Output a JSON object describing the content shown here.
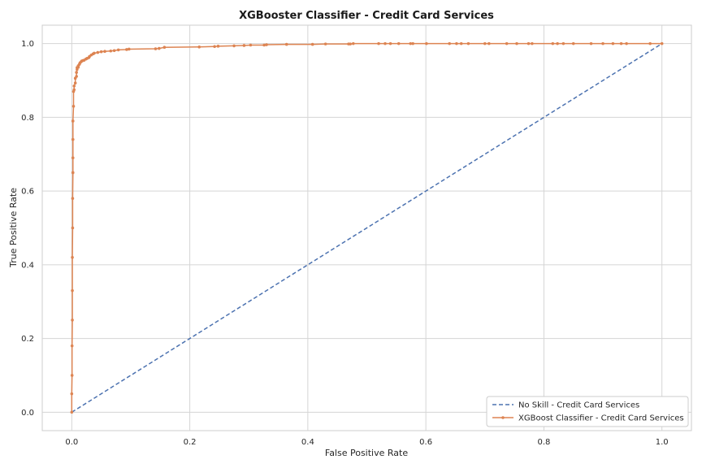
{
  "chart_data": {
    "type": "line",
    "title": "XGBooster Classifier - Credit Card Services",
    "xlabel": "False Positive Rate",
    "ylabel": "True Positive Rate",
    "xlim": [
      -0.05,
      1.05
    ],
    "ylim": [
      -0.05,
      1.05
    ],
    "xticks": [
      0.0,
      0.2,
      0.4,
      0.6,
      0.8,
      1.0
    ],
    "yticks": [
      0.0,
      0.2,
      0.4,
      0.6,
      0.8,
      1.0
    ],
    "xtick_labels": [
      "0.0",
      "0.2",
      "0.4",
      "0.6",
      "0.8",
      "1.0"
    ],
    "ytick_labels": [
      "0.0",
      "0.2",
      "0.4",
      "0.6",
      "0.8",
      "1.0"
    ],
    "grid": true,
    "legend_position": "lower-right",
    "series": [
      {
        "name": "No Skill - Credit Card Services",
        "style": "dashed",
        "color": "#4c72b0",
        "markers": false,
        "x": [
          0.0,
          1.0
        ],
        "y": [
          0.0,
          1.0
        ]
      },
      {
        "name": "XGBoost Classifier - Credit Card Services",
        "style": "solid",
        "color": "#dd8452",
        "markers": true,
        "x": [
          0.0,
          0.0,
          0.0005,
          0.0005,
          0.001,
          0.001,
          0.001,
          0.0015,
          0.0015,
          0.002,
          0.002,
          0.002,
          0.002,
          0.003,
          0.003,
          0.004,
          0.004,
          0.006,
          0.006,
          0.008,
          0.008,
          0.009,
          0.009,
          0.011,
          0.011,
          0.013,
          0.014,
          0.016,
          0.017,
          0.019,
          0.021,
          0.024,
          0.026,
          0.029,
          0.03,
          0.033,
          0.036,
          0.038,
          0.044,
          0.05,
          0.056,
          0.066,
          0.072,
          0.079,
          0.093,
          0.097,
          0.142,
          0.148,
          0.157,
          0.216,
          0.242,
          0.248,
          0.275,
          0.292,
          0.303,
          0.326,
          0.33,
          0.364,
          0.408,
          0.43,
          0.469,
          0.472,
          0.477,
          0.52,
          0.531,
          0.54,
          0.554,
          0.574,
          0.578,
          0.601,
          0.64,
          0.652,
          0.66,
          0.672,
          0.7,
          0.707,
          0.737,
          0.754,
          0.774,
          0.78,
          0.815,
          0.823,
          0.833,
          0.85,
          0.88,
          0.9,
          0.917,
          0.931,
          0.94,
          0.98,
          1.0
        ],
        "y": [
          0.0,
          0.05,
          0.1,
          0.18,
          0.25,
          0.33,
          0.42,
          0.5,
          0.58,
          0.65,
          0.69,
          0.74,
          0.79,
          0.83,
          0.87,
          0.875,
          0.885,
          0.893,
          0.906,
          0.911,
          0.922,
          0.93,
          0.935,
          0.936,
          0.94,
          0.944,
          0.948,
          0.951,
          0.953,
          0.954,
          0.955,
          0.958,
          0.96,
          0.962,
          0.965,
          0.969,
          0.972,
          0.974,
          0.976,
          0.978,
          0.979,
          0.98,
          0.981,
          0.983,
          0.984,
          0.985,
          0.986,
          0.987,
          0.99,
          0.991,
          0.992,
          0.993,
          0.994,
          0.995,
          0.996,
          0.996,
          0.997,
          0.998,
          0.998,
          0.999,
          0.999,
          0.999,
          1.0,
          1.0,
          1.0,
          1.0,
          1.0,
          1.0,
          1.0,
          1.0,
          1.0,
          1.0,
          1.0,
          1.0,
          1.0,
          1.0,
          1.0,
          1.0,
          1.0,
          1.0,
          1.0,
          1.0,
          1.0,
          1.0,
          1.0,
          1.0,
          1.0,
          1.0,
          1.0,
          1.0,
          1.0
        ]
      }
    ]
  }
}
